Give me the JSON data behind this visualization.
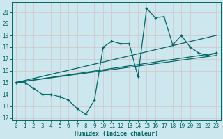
{
  "xlabel": "Humidex (Indice chaleur)",
  "bg_color": "#cce8ee",
  "line_color": "#006666",
  "grid_color": "#c0d8dc",
  "xlim": [
    -0.5,
    23.5
  ],
  "ylim": [
    11.8,
    21.8
  ],
  "yticks": [
    12,
    13,
    14,
    15,
    16,
    17,
    18,
    19,
    20,
    21
  ],
  "xticks": [
    0,
    1,
    2,
    3,
    4,
    5,
    6,
    7,
    8,
    9,
    10,
    11,
    12,
    13,
    14,
    15,
    16,
    17,
    18,
    19,
    20,
    21,
    22,
    23
  ],
  "main_x": [
    0,
    1,
    2,
    3,
    4,
    5,
    6,
    7,
    8,
    9,
    10,
    11,
    12,
    13,
    14,
    15,
    16,
    17,
    18,
    19,
    20,
    21,
    22,
    23
  ],
  "main_y": [
    15.0,
    15.0,
    14.5,
    14.0,
    14.0,
    13.8,
    13.5,
    12.8,
    12.3,
    13.5,
    18.0,
    18.5,
    18.3,
    18.3,
    15.5,
    21.3,
    20.5,
    20.6,
    18.2,
    19.0,
    18.0,
    17.5,
    17.3,
    17.5
  ],
  "trend1_x": [
    0,
    23
  ],
  "trend1_y": [
    15.0,
    19.0
  ],
  "trend2_x": [
    0,
    23
  ],
  "trend2_y": [
    15.0,
    17.5
  ],
  "trend3_x": [
    0,
    23
  ],
  "trend3_y": [
    15.0,
    17.3
  ]
}
